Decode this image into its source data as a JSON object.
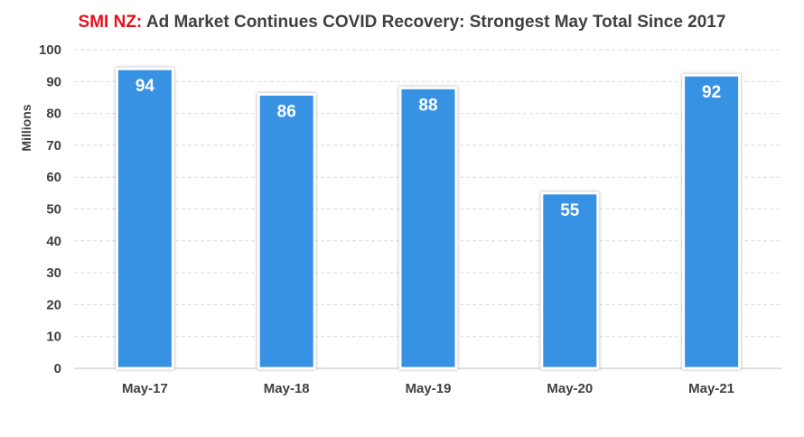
{
  "title_brand": "SMI NZ:",
  "title_rest": "Ad Market Continues COVID Recovery: Strongest May Total Since 2017",
  "colors": {
    "brand": "#e3121b",
    "bar": "#3892e3",
    "bar_border": "#ffffff",
    "grid": "#d9d9d9",
    "text": "#404040"
  },
  "chart_data": {
    "type": "bar",
    "categories": [
      "May-17",
      "May-18",
      "May-19",
      "May-20",
      "May-21"
    ],
    "series": [
      {
        "values": [
          94,
          86,
          88,
          55,
          92
        ]
      }
    ],
    "data_labels": [
      "94",
      "86",
      "88",
      "55",
      "92"
    ],
    "xlabel": "",
    "ylabel": "Millions",
    "ylim": [
      0,
      100
    ],
    "yticks": [
      0,
      10,
      20,
      30,
      40,
      50,
      60,
      70,
      80,
      90,
      100
    ],
    "grid": true
  }
}
